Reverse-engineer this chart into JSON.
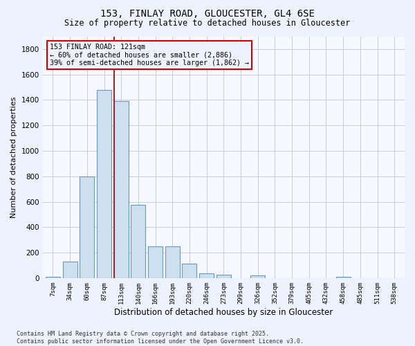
{
  "title1": "153, FINLAY ROAD, GLOUCESTER, GL4 6SE",
  "title2": "Size of property relative to detached houses in Gloucester",
  "xlabel": "Distribution of detached houses by size in Gloucester",
  "ylabel": "Number of detached properties",
  "bin_labels": [
    "7sqm",
    "34sqm",
    "60sqm",
    "87sqm",
    "113sqm",
    "140sqm",
    "166sqm",
    "193sqm",
    "220sqm",
    "246sqm",
    "273sqm",
    "299sqm",
    "326sqm",
    "352sqm",
    "379sqm",
    "405sqm",
    "432sqm",
    "458sqm",
    "485sqm",
    "511sqm",
    "538sqm"
  ],
  "bar_heights": [
    10,
    130,
    800,
    1480,
    1390,
    575,
    250,
    250,
    115,
    35,
    28,
    0,
    20,
    0,
    0,
    0,
    0,
    10,
    0,
    0,
    0
  ],
  "bar_color": "#cce0f0",
  "bar_edge_color": "#6699bb",
  "grid_color": "#cccccc",
  "vline_color": "#aa2222",
  "annotation_text": "153 FINLAY ROAD: 121sqm\n← 60% of detached houses are smaller (2,886)\n39% of semi-detached houses are larger (1,862) →",
  "annotation_box_color": "#cc0000",
  "bg_color": "#eef2ff",
  "plot_bg_color": "#f5f8ff",
  "footer_text": "Contains HM Land Registry data © Crown copyright and database right 2025.\nContains public sector information licensed under the Open Government Licence v3.0.",
  "ylim": [
    0,
    1900
  ],
  "yticks": [
    0,
    200,
    400,
    600,
    800,
    1000,
    1200,
    1400,
    1600,
    1800
  ]
}
